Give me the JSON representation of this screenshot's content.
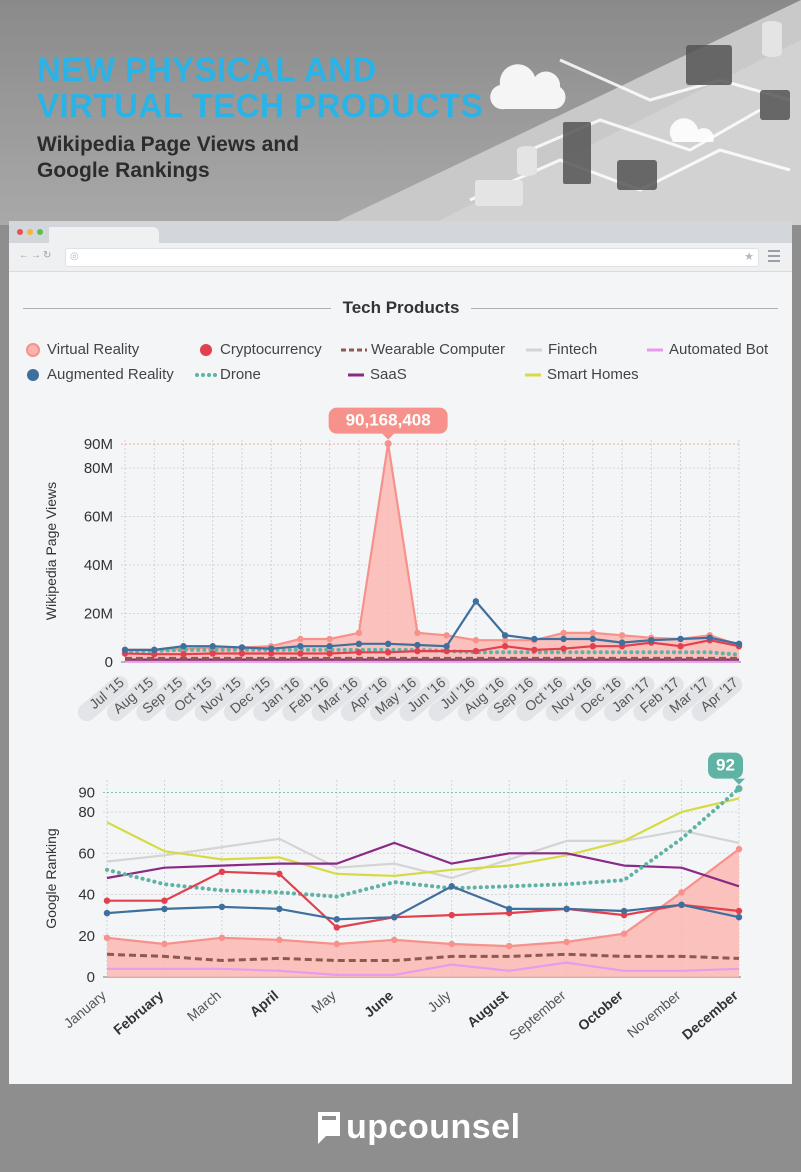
{
  "header": {
    "title_line1": "NEW PHYSICAL AND",
    "title_line2": "VIRTUAL TECH PRODUCTS",
    "subtitle_line1": "Wikipedia Page Views and",
    "subtitle_line2": "Google Rankings"
  },
  "section_title": "Tech Products",
  "legend": [
    {
      "name": "Virtual Reality",
      "style": "dot-light"
    },
    {
      "name": "Cryptocurrency",
      "style": "dot"
    },
    {
      "name": "Wearable Computer",
      "style": "dash"
    },
    {
      "name": "Fintech",
      "style": "line"
    },
    {
      "name": "Automated Bot",
      "style": "line"
    },
    {
      "name": "Augmented Reality",
      "style": "dot"
    },
    {
      "name": "Drone",
      "style": "dots"
    },
    {
      "name": "SaaS",
      "style": "line"
    },
    {
      "name": "Smart Homes",
      "style": "line"
    }
  ],
  "colors": {
    "Virtual Reality": "#f7918b",
    "Cryptocurrency": "#e2404f",
    "Wearable Computer": "#8c5a4e",
    "Fintech": "#d4d4d4",
    "Automated Bot": "#e79bef",
    "Augmented Reality": "#3f6f9c",
    "Drone": "#5fb3a5",
    "SaaS": "#8a2a86",
    "Smart Homes": "#d6db45",
    "title": "#2ab3e6"
  },
  "chart_data": [
    {
      "type": "line",
      "ylabel": "Wikipedia Page Views",
      "yticks": [
        "0",
        "20M",
        "40M",
        "60M",
        "80M",
        "90M"
      ],
      "ytick_values": [
        0,
        20000000,
        40000000,
        60000000,
        80000000,
        90000000
      ],
      "ylim": [
        0,
        90000000
      ],
      "grid": true,
      "categories": [
        "Jul '15",
        "Aug '15",
        "Sep '15",
        "Oct '15",
        "Nov '15",
        "Dec '15",
        "Jan '16",
        "Feb '16",
        "Mar '16",
        "Apr '16",
        "May '16",
        "Jun '16",
        "Jul '16",
        "Aug '16",
        "Sep '16",
        "Oct '16",
        "Nov '16",
        "Dec '16",
        "Jan '17",
        "Feb '17",
        "Mar '17",
        "Apr '17"
      ],
      "annotation": {
        "label": "90,168,408",
        "series": "Virtual Reality",
        "category": "Apr '16"
      },
      "series": [
        {
          "name": "Virtual Reality",
          "values": [
            5000000,
            5000000,
            5500000,
            6000000,
            6000000,
            6500000,
            9500000,
            9500000,
            12000000,
            90168408,
            12000000,
            11000000,
            9000000,
            9000000,
            9000000,
            12000000,
            12000000,
            11000000,
            10000000,
            9500000,
            11000000,
            7000000
          ]
        },
        {
          "name": "Augmented Reality",
          "values": [
            5000000,
            5000000,
            6500000,
            6500000,
            6000000,
            5500000,
            6500000,
            6500000,
            7500000,
            7500000,
            7000000,
            6500000,
            25000000,
            11000000,
            9500000,
            9500000,
            9500000,
            8000000,
            9000000,
            9500000,
            10000000,
            7500000
          ]
        },
        {
          "name": "Cryptocurrency",
          "values": [
            3500000,
            3200000,
            3200000,
            3500000,
            3500000,
            3500000,
            3500000,
            3500000,
            4000000,
            4000000,
            4500000,
            4500000,
            4500000,
            6500000,
            5000000,
            5500000,
            6500000,
            6500000,
            8000000,
            6500000,
            9000000,
            6500000
          ]
        },
        {
          "name": "Drone",
          "values": [
            4500000,
            4500000,
            5000000,
            5000000,
            5000000,
            5000000,
            5000000,
            5000000,
            5000000,
            5000000,
            5000000,
            4500000,
            4000000,
            4000000,
            4000000,
            4000000,
            4000000,
            4000000,
            4000000,
            4000000,
            4000000,
            3000000
          ]
        },
        {
          "name": "Wearable Computer",
          "values": [
            1500000,
            1500000,
            1500000,
            1500000,
            1500000,
            1500000,
            1500000,
            1500000,
            1500000,
            1500000,
            1500000,
            1500000,
            1500000,
            1500000,
            1500000,
            1500000,
            1500000,
            1500000,
            1500000,
            1500000,
            1500000,
            1500000
          ]
        },
        {
          "name": "SaaS",
          "values": [
            1000000,
            1000000,
            1000000,
            1000000,
            1000000,
            1000000,
            1000000,
            1000000,
            1000000,
            1000000,
            1000000,
            1000000,
            1000000,
            1000000,
            1000000,
            1000000,
            1000000,
            1000000,
            1000000,
            1000000,
            1000000,
            1000000
          ]
        },
        {
          "name": "Fintech",
          "values": [
            300000,
            300000,
            300000,
            300000,
            300000,
            300000,
            300000,
            300000,
            300000,
            300000,
            300000,
            300000,
            300000,
            300000,
            300000,
            300000,
            300000,
            300000,
            300000,
            300000,
            300000,
            300000
          ]
        },
        {
          "name": "Smart Homes",
          "values": [
            200000,
            200000,
            200000,
            200000,
            200000,
            200000,
            200000,
            200000,
            200000,
            200000,
            200000,
            200000,
            200000,
            200000,
            200000,
            200000,
            200000,
            200000,
            200000,
            200000,
            200000,
            200000
          ]
        },
        {
          "name": "Automated Bot",
          "values": [
            100000,
            100000,
            100000,
            100000,
            100000,
            100000,
            100000,
            100000,
            100000,
            100000,
            100000,
            100000,
            100000,
            100000,
            100000,
            100000,
            100000,
            100000,
            100000,
            100000,
            100000,
            100000
          ]
        }
      ]
    },
    {
      "type": "line",
      "ylabel": "Google Ranking",
      "yticks": [
        "0",
        "20",
        "40",
        "60",
        "80",
        "90"
      ],
      "ytick_values": [
        0,
        20,
        40,
        60,
        80,
        90
      ],
      "ylim": [
        0,
        90
      ],
      "grid": true,
      "categories": [
        "January",
        "February",
        "March",
        "April",
        "May",
        "June",
        "July",
        "August",
        "September",
        "October",
        "November",
        "December"
      ],
      "bold_categories": [
        "February",
        "April",
        "June",
        "August",
        "October",
        "December"
      ],
      "annotation": {
        "label": "92",
        "series": "Drone",
        "category": "December"
      },
      "series": [
        {
          "name": "Virtual Reality",
          "values": [
            19,
            16,
            19,
            18,
            16,
            18,
            16,
            15,
            17,
            21,
            41,
            62
          ]
        },
        {
          "name": "Augmented Reality",
          "values": [
            31,
            33,
            34,
            33,
            28,
            29,
            44,
            33,
            33,
            32,
            35,
            29
          ]
        },
        {
          "name": "Cryptocurrency",
          "values": [
            37,
            37,
            51,
            50,
            24,
            29,
            30,
            31,
            33,
            30,
            35,
            32
          ]
        },
        {
          "name": "Drone",
          "values": [
            52,
            45,
            42,
            41,
            39,
            46,
            43,
            44,
            45,
            47,
            67,
            92
          ]
        },
        {
          "name": "Wearable Computer",
          "values": [
            11,
            10,
            8,
            9,
            8,
            8,
            10,
            10,
            11,
            10,
            10,
            9
          ]
        },
        {
          "name": "SaaS",
          "values": [
            48,
            53,
            54,
            55,
            55,
            65,
            55,
            60,
            60,
            54,
            53,
            44
          ]
        },
        {
          "name": "Fintech",
          "values": [
            56,
            59,
            63,
            67,
            53,
            55,
            48,
            57,
            66,
            66,
            71,
            65
          ]
        },
        {
          "name": "Smart Homes",
          "values": [
            75,
            61,
            57,
            58,
            50,
            49,
            52,
            54,
            59,
            66,
            80,
            87
          ]
        },
        {
          "name": "Automated Bot",
          "values": [
            4,
            4,
            4,
            3,
            1,
            1,
            6,
            3,
            7,
            3,
            3,
            4
          ]
        }
      ]
    }
  ],
  "footer": {
    "brand": "upcounsel"
  }
}
